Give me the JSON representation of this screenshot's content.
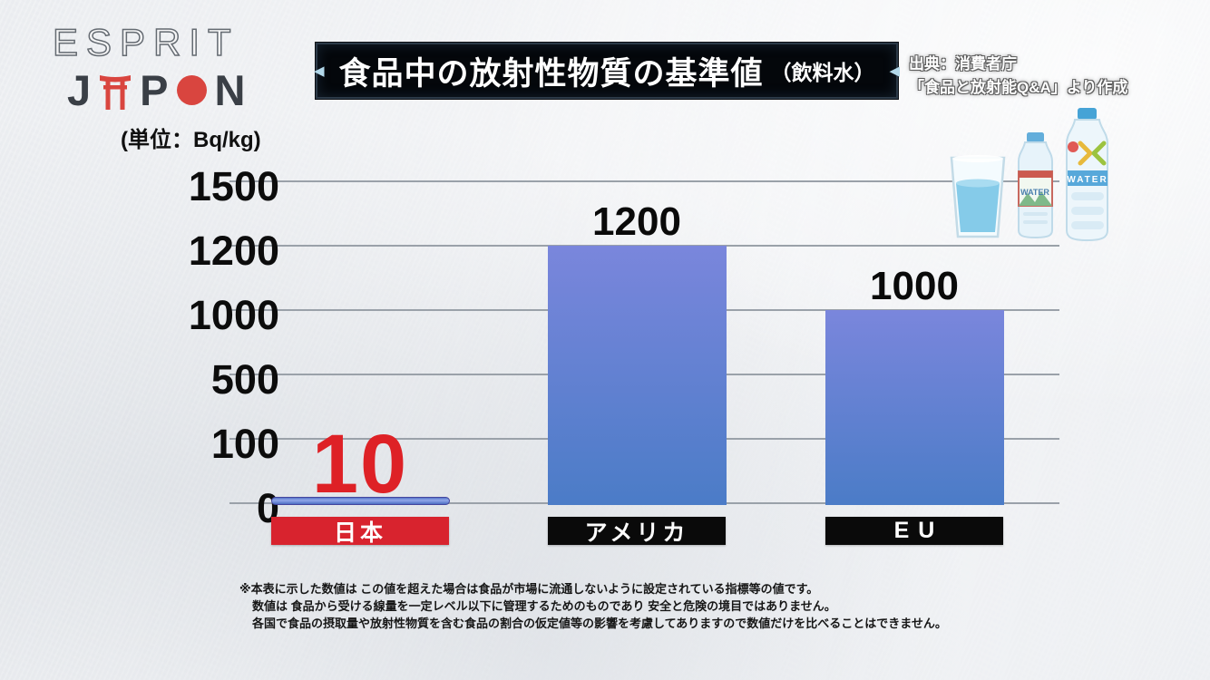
{
  "logo": {
    "line1": "ESPRIT",
    "letter_j": "J",
    "letter_p": "P",
    "letter_n": "N",
    "accent_color": "#d9453f"
  },
  "header": {
    "arrow_left": "◀",
    "arrow_right": "◀",
    "title": "食品中の放射性物質の基準値",
    "title_suffix": "（飲料水）",
    "source_line1": "出典：消費者庁",
    "source_line2": "「食品と放射能Q&A」より作成"
  },
  "chart": {
    "unit_label": "(単位：Bq/kg)"
  },
  "chart_data": {
    "type": "bar",
    "title": "食品中の放射性物質の基準値（飲料水）",
    "unit": "Bq/kg",
    "categories": [
      "日本",
      "アメリカ",
      "EU"
    ],
    "values": [
      10,
      1200,
      1000
    ],
    "value_labels": [
      "10",
      "1200",
      "1000"
    ],
    "y_ticks": [
      0,
      100,
      500,
      1000,
      1200,
      1500
    ],
    "ylim": [
      0,
      1500
    ],
    "y_scale": "non-linear (tick marks evenly spaced)",
    "grid": true,
    "legend": "none",
    "bar_gradient_top": "#7a86dc",
    "bar_gradient_bottom": "#4b7cc7",
    "highlight_value_color": "#de2126",
    "value_label_color": "#0a0a0a",
    "category_label_styles": [
      {
        "bg": "#d8232e",
        "fg": "#ffffff"
      },
      {
        "bg": "#0a0a0a",
        "fg": "#ffffff"
      },
      {
        "bg": "#0a0a0a",
        "fg": "#ffffff"
      }
    ]
  },
  "footnote": {
    "line1": "※本表に示した数値は この値を超えた場合は食品が市場に流通しないように設定されている指標等の値です。",
    "line2": "数値は 食品から受ける線量を一定レベル以下に管理するためのものであり 安全と危険の境目ではありません。",
    "line3": "各国で食品の摂取量や放射性物質を含む食品の割合の仮定値等の影響を考慮してありますので数値だけを比べることはできません。"
  },
  "water_icons": {
    "small_bottle_label": "WATER",
    "large_bottle_label": "WATER"
  }
}
